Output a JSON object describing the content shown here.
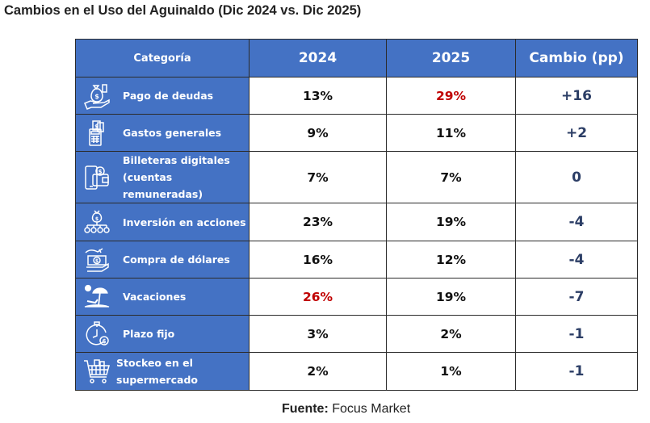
{
  "title": "Cambios en el Uso del Aguinaldo (Dic 2024 vs. Dic 2025)",
  "table": {
    "headers": [
      "Categoría",
      "2024",
      "2025",
      "Cambio (pp)"
    ],
    "rows": [
      {
        "icon": "money-bag-hand-icon",
        "category": "Pago de deudas",
        "category_line2": "",
        "y2024": "13%",
        "y2025": "29%",
        "change": "+16",
        "highlight": "y2025"
      },
      {
        "icon": "payment-terminal-icon",
        "category": "Gastos generales",
        "category_line2": "",
        "y2024": "9%",
        "y2025": "11%",
        "change": "+2",
        "highlight": ""
      },
      {
        "icon": "phone-wallet-icon",
        "category": "Billeteras digitales",
        "category_line2": "(cuentas remuneradas)",
        "y2024": "7%",
        "y2025": "7%",
        "change": "0",
        "highlight": ""
      },
      {
        "icon": "investment-network-icon",
        "category": "Inversión en acciones",
        "category_line2": "",
        "y2024": "23%",
        "y2025": "19%",
        "change": "-4",
        "highlight": ""
      },
      {
        "icon": "cash-hand-icon",
        "category": "Compra de dólares",
        "category_line2": "",
        "y2024": "16%",
        "y2025": "12%",
        "change": "-4",
        "highlight": ""
      },
      {
        "icon": "beach-umbrella-icon",
        "category": "Vacaciones",
        "category_line2": "",
        "y2024": "26%",
        "y2025": "19%",
        "change": "-7",
        "highlight": "y2024"
      },
      {
        "icon": "stopwatch-dollar-icon",
        "category": "Plazo fijo",
        "category_line2": "",
        "y2024": "3%",
        "y2025": "2%",
        "change": "-1",
        "highlight": ""
      },
      {
        "icon": "shopping-cart-icon",
        "category": "Stockeo en el",
        "category_line2": "supermercado",
        "y2024": "2%",
        "y2025": "1%",
        "change": "-1",
        "highlight": ""
      }
    ]
  },
  "source": {
    "label": "Fuente:",
    "value": "Focus Market"
  },
  "colors": {
    "header_bg": "#4472c4",
    "highlight": "#c00000",
    "change_text": "#2c3e66"
  }
}
